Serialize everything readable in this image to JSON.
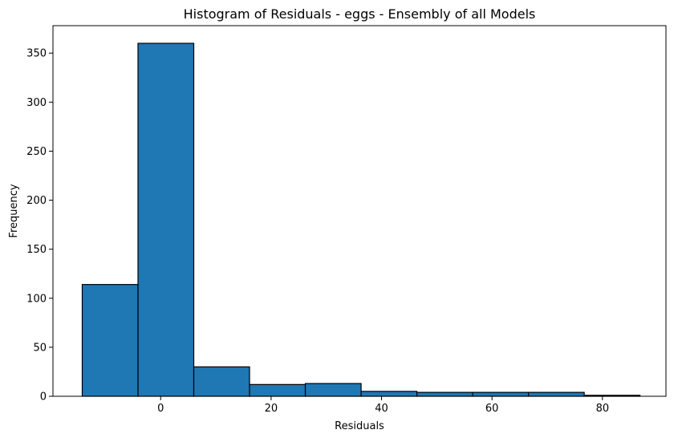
{
  "chart_data": {
    "type": "bar",
    "title": "Histogram of Residuals - eggs  - Ensembly of all Models",
    "xlabel": "Residuals",
    "ylabel": "Frequency",
    "xlim": [
      -19.5,
      91.5
    ],
    "ylim": [
      0,
      378
    ],
    "xticks": [
      0,
      20,
      40,
      60,
      80
    ],
    "yticks": [
      0,
      50,
      100,
      150,
      200,
      250,
      300,
      350
    ],
    "bin_edges": [
      -14.2,
      -4.1,
      6.0,
      16.1,
      26.2,
      36.3,
      46.4,
      56.5,
      66.6,
      76.7,
      86.8
    ],
    "values": [
      114,
      360,
      30,
      12,
      13,
      5,
      4,
      4,
      4,
      1
    ],
    "grid": false,
    "bar_color": "#1f77b4",
    "edge_color": "#000000"
  }
}
